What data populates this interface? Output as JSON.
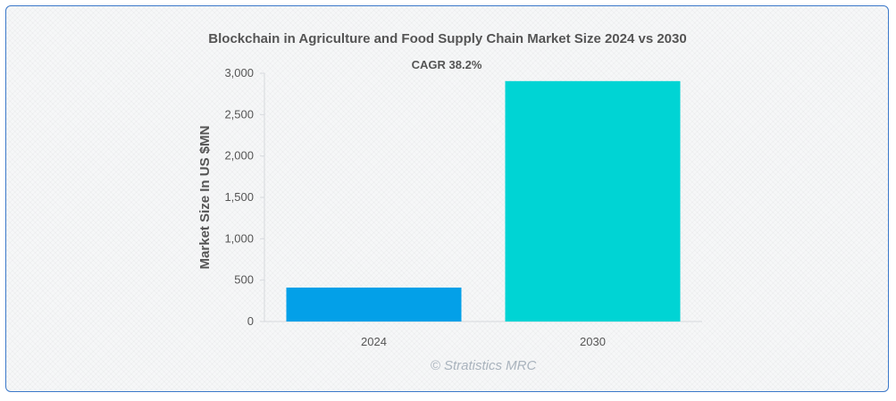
{
  "chart_data": {
    "type": "bar",
    "title": "Blockchain in Agriculture and Food Supply Chain Market Size 2024 vs 2030",
    "annotation": "CAGR 38.2%",
    "xlabel": "",
    "ylabel": "Market Size In US $MN",
    "categories": [
      "2024",
      "2030"
    ],
    "values": [
      410,
      2905
    ],
    "colors": [
      "#03a0e8",
      "#00d4d4"
    ],
    "ylim": [
      0,
      3000
    ],
    "yticks": [
      0,
      500,
      1000,
      1500,
      2000,
      2500,
      3000
    ],
    "ytick_labels": [
      "0",
      "500",
      "1,000",
      "1,500",
      "2,000",
      "2,500",
      "3,000"
    ],
    "grid": false,
    "legend": "none"
  },
  "watermark": "© Stratistics MRC"
}
